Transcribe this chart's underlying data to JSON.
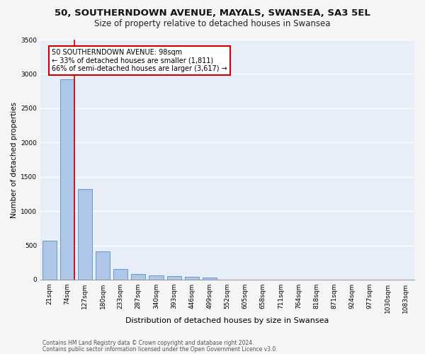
{
  "title1": "50, SOUTHERNDOWN AVENUE, MAYALS, SWANSEA, SA3 5EL",
  "title2": "Size of property relative to detached houses in Swansea",
  "xlabel": "Distribution of detached houses by size in Swansea",
  "ylabel": "Number of detached properties",
  "footer1": "Contains HM Land Registry data © Crown copyright and database right 2024.",
  "footer2": "Contains public sector information licensed under the Open Government Licence v3.0.",
  "categories": [
    "21sqm",
    "74sqm",
    "127sqm",
    "180sqm",
    "233sqm",
    "287sqm",
    "340sqm",
    "393sqm",
    "446sqm",
    "499sqm",
    "552sqm",
    "605sqm",
    "658sqm",
    "711sqm",
    "764sqm",
    "818sqm",
    "871sqm",
    "924sqm",
    "977sqm",
    "1030sqm",
    "1083sqm"
  ],
  "values": [
    570,
    2920,
    1320,
    410,
    155,
    80,
    60,
    55,
    45,
    35,
    0,
    0,
    0,
    0,
    0,
    0,
    0,
    0,
    0,
    0,
    0
  ],
  "bar_color": "#aec6e8",
  "bar_edge_color": "#5a8fc2",
  "highlight_bar_index": 1,
  "highlight_line_color": "#cc0000",
  "annotation_text": "50 SOUTHERNDOWN AVENUE: 98sqm\n← 33% of detached houses are smaller (1,811)\n66% of semi-detached houses are larger (3,617) →",
  "annotation_box_color": "#cc0000",
  "ylim": [
    0,
    3500
  ],
  "yticks": [
    0,
    500,
    1000,
    1500,
    2000,
    2500,
    3000,
    3500
  ],
  "background_color": "#e8eef7",
  "grid_color": "#ffffff",
  "fig_bg_color": "#f5f5f5",
  "title1_fontsize": 9.5,
  "title2_fontsize": 8.5,
  "xlabel_fontsize": 8,
  "ylabel_fontsize": 7.5,
  "tick_fontsize": 6.5,
  "ann_fontsize": 7,
  "footer_fontsize": 5.5
}
